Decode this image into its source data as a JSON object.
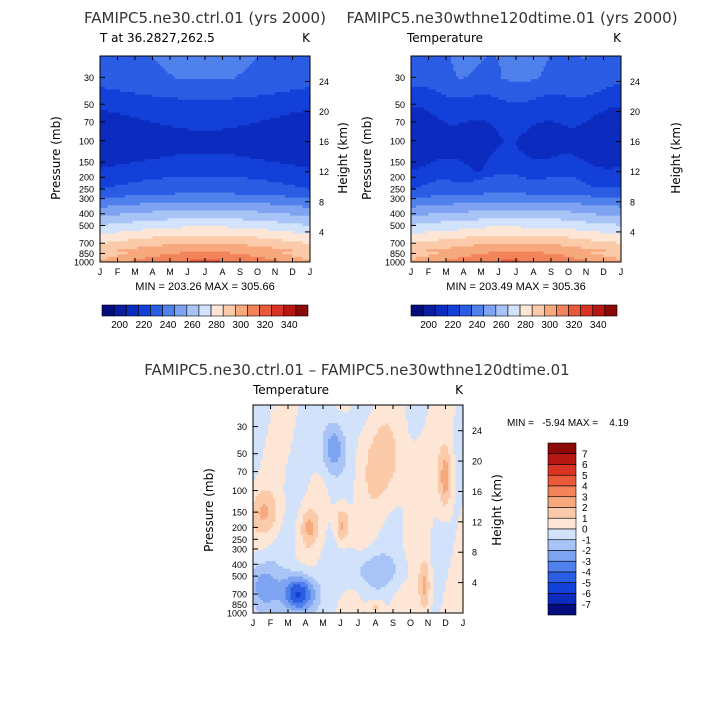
{
  "chart_data": [
    {
      "type": "heatmap",
      "title": "FAMIPC5.ne30.ctrl.01 (yrs 2000)",
      "left_label": "T at 36.2827,262.5",
      "right_label": "K",
      "xlabel": "",
      "ylabel": "Pressure (mb)",
      "y2label": "Height (km)",
      "x_ticks": [
        "J",
        "F",
        "M",
        "A",
        "M",
        "J",
        "J",
        "A",
        "S",
        "O",
        "N",
        "D",
        "J"
      ],
      "y_ticks": [
        30,
        50,
        70,
        100,
        150,
        200,
        250,
        300,
        400,
        500,
        700,
        850,
        1000
      ],
      "y2_ticks": [
        24,
        20,
        16,
        12,
        8,
        4
      ],
      "min_max_text": "MIN = 203.26 MAX = 305.66",
      "colorbar_labels": [
        200,
        220,
        240,
        260,
        280,
        300,
        320,
        340
      ],
      "levels": [
        190,
        200,
        210,
        220,
        230,
        240,
        250,
        260,
        270,
        280,
        290,
        300,
        310,
        320,
        330,
        340,
        350
      ],
      "fields": {
        "min": 203.26,
        "max": 305.66
      }
    },
    {
      "type": "heatmap",
      "title": "FAMIPC5.ne30wthne120dtime.01 (yrs 2000)",
      "left_label": "Temperature",
      "right_label": "K",
      "xlabel": "",
      "ylabel": "Pressure (mb)",
      "y2label": "Height (km)",
      "x_ticks": [
        "J",
        "F",
        "M",
        "A",
        "M",
        "J",
        "J",
        "A",
        "S",
        "O",
        "N",
        "D",
        "J"
      ],
      "y_ticks": [
        30,
        50,
        70,
        100,
        150,
        200,
        250,
        300,
        400,
        500,
        700,
        850,
        1000
      ],
      "y2_ticks": [
        24,
        20,
        16,
        12,
        8,
        4
      ],
      "min_max_text": "MIN = 203.49 MAX = 305.36",
      "colorbar_labels": [
        200,
        220,
        240,
        260,
        280,
        300,
        320,
        340
      ],
      "levels": [
        190,
        200,
        210,
        220,
        230,
        240,
        250,
        260,
        270,
        280,
        290,
        300,
        310,
        320,
        330,
        340,
        350
      ],
      "fields": {
        "min": 203.49,
        "max": 305.36
      }
    },
    {
      "type": "heatmap",
      "title": "FAMIPC5.ne30.ctrl.01 – FAMIPC5.ne30wthne120dtime.01",
      "left_label": "Temperature",
      "right_label": "K",
      "xlabel": "",
      "ylabel": "Pressure (mb)",
      "y2label": "Height (km)",
      "x_ticks": [
        "J",
        "F",
        "M",
        "A",
        "M",
        "J",
        "J",
        "A",
        "S",
        "O",
        "N",
        "D",
        "J"
      ],
      "y_ticks": [
        30,
        50,
        70,
        100,
        150,
        200,
        250,
        300,
        400,
        500,
        700,
        850,
        1000
      ],
      "y2_ticks": [
        24,
        20,
        16,
        12,
        8,
        4
      ],
      "min_max_text": "MIN =   -5.94 MAX =    4.19",
      "colorbar_labels": [
        7,
        6,
        5,
        4,
        3,
        2,
        1,
        0,
        -1,
        -2,
        -3,
        -4,
        -5,
        -6,
        -7
      ],
      "levels": [
        -7,
        -6,
        -5,
        -4,
        -3,
        -2,
        -1,
        0,
        1,
        2,
        3,
        4,
        5,
        6,
        7
      ],
      "fields": {
        "min": -5.94,
        "max": 4.19
      }
    }
  ],
  "colors": {
    "temperature_scale": [
      "#040d7d",
      "#0a1c9f",
      "#0c2bbf",
      "#1240d8",
      "#2a5de4",
      "#4f80ec",
      "#7ea3f1",
      "#a8c3f6",
      "#d1e2fa",
      "#fde6d6",
      "#fbcaa9",
      "#f7a87d",
      "#f2835a",
      "#e95a3a",
      "#d93323",
      "#b71712",
      "#8b0906"
    ],
    "difference_scale": [
      "#8b0906",
      "#b71712",
      "#d93323",
      "#e95a3a",
      "#f2835a",
      "#f7a87d",
      "#fbcaa9",
      "#fde6d6",
      "#d1e2fa",
      "#a8c3f6",
      "#7ea3f1",
      "#4f80ec",
      "#2a5de4",
      "#1240d8",
      "#0c2bbf",
      "#040d7d"
    ]
  }
}
